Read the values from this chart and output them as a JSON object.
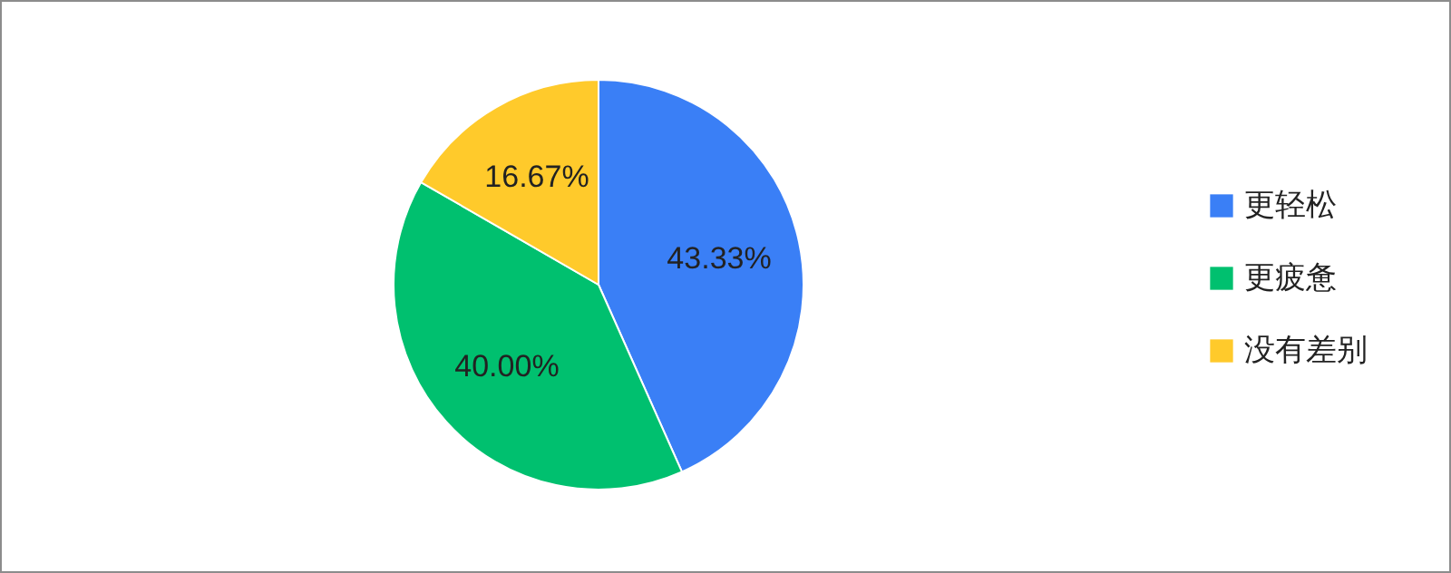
{
  "chart_data": {
    "type": "pie",
    "categories": [
      "更轻松",
      "更疲惫",
      "没有差别"
    ],
    "values": [
      43.33,
      40.0,
      16.67
    ],
    "colors": [
      "#3a7ff6",
      "#00c06f",
      "#ffca2b"
    ],
    "value_labels": [
      "43.33%",
      "40.00%",
      "16.67%"
    ],
    "legend": "right"
  }
}
